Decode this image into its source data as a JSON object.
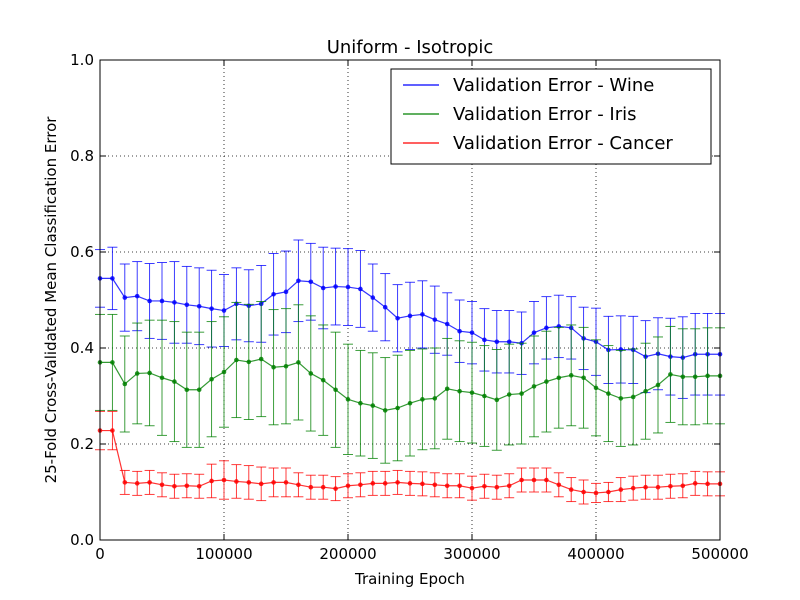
{
  "chart_data": {
    "type": "line",
    "title": "Uniform - Isotropic",
    "xlabel": "Training Epoch",
    "ylabel": "25-Fold Cross-Validated Mean Classification Error",
    "xlim": [
      0,
      500000
    ],
    "ylim": [
      0.0,
      1.0
    ],
    "x_ticks": [
      0,
      100000,
      200000,
      300000,
      400000,
      500000
    ],
    "x_tick_labels": [
      "0",
      "100000",
      "200000",
      "300000",
      "400000",
      "500000"
    ],
    "y_ticks": [
      0.0,
      0.2,
      0.4,
      0.6,
      0.8,
      1.0
    ],
    "y_tick_labels": [
      "0.0",
      "0.2",
      "0.4",
      "0.6",
      "0.8",
      "1.0"
    ],
    "grid": true,
    "legend_position": "top-right",
    "x": [
      0,
      10000,
      20000,
      30000,
      40000,
      50000,
      60000,
      70000,
      80000,
      90000,
      100000,
      110000,
      120000,
      130000,
      140000,
      150000,
      160000,
      170000,
      180000,
      190000,
      200000,
      210000,
      220000,
      230000,
      240000,
      250000,
      260000,
      270000,
      280000,
      290000,
      300000,
      310000,
      320000,
      330000,
      340000,
      350000,
      360000,
      370000,
      380000,
      390000,
      400000,
      410000,
      420000,
      430000,
      440000,
      450000,
      460000,
      470000,
      480000,
      490000,
      500000
    ],
    "series": [
      {
        "name": "Validation Error - Wine",
        "color": "#0000ff",
        "values": [
          0.545,
          0.545,
          0.505,
          0.508,
          0.498,
          0.498,
          0.495,
          0.49,
          0.487,
          0.482,
          0.478,
          0.492,
          0.488,
          0.492,
          0.512,
          0.517,
          0.54,
          0.538,
          0.525,
          0.528,
          0.527,
          0.523,
          0.505,
          0.485,
          0.462,
          0.467,
          0.47,
          0.459,
          0.45,
          0.435,
          0.432,
          0.417,
          0.413,
          0.413,
          0.41,
          0.432,
          0.442,
          0.445,
          0.442,
          0.42,
          0.413,
          0.396,
          0.397,
          0.396,
          0.382,
          0.388,
          0.382,
          0.38,
          0.387,
          0.387,
          0.387
        ],
        "errors": [
          0.06,
          0.065,
          0.07,
          0.072,
          0.078,
          0.08,
          0.085,
          0.08,
          0.08,
          0.08,
          0.075,
          0.075,
          0.075,
          0.08,
          0.085,
          0.085,
          0.085,
          0.08,
          0.085,
          0.08,
          0.08,
          0.08,
          0.07,
          0.07,
          0.07,
          0.07,
          0.07,
          0.07,
          0.065,
          0.065,
          0.065,
          0.065,
          0.065,
          0.065,
          0.065,
          0.065,
          0.065,
          0.065,
          0.065,
          0.065,
          0.07,
          0.07,
          0.07,
          0.07,
          0.075,
          0.075,
          0.08,
          0.085,
          0.085,
          0.085,
          0.085
        ]
      },
      {
        "name": "Validation Error - Iris",
        "color": "#008000",
        "values": [
          0.37,
          0.37,
          0.325,
          0.347,
          0.348,
          0.338,
          0.33,
          0.313,
          0.313,
          0.335,
          0.35,
          0.375,
          0.371,
          0.377,
          0.36,
          0.362,
          0.37,
          0.347,
          0.333,
          0.313,
          0.293,
          0.285,
          0.28,
          0.27,
          0.275,
          0.285,
          0.293,
          0.295,
          0.315,
          0.31,
          0.307,
          0.3,
          0.292,
          0.303,
          0.305,
          0.32,
          0.33,
          0.338,
          0.343,
          0.338,
          0.317,
          0.305,
          0.295,
          0.298,
          0.31,
          0.323,
          0.345,
          0.34,
          0.34,
          0.342,
          0.342
        ],
        "errors": [
          0.1,
          0.1,
          0.1,
          0.105,
          0.11,
          0.12,
          0.125,
          0.12,
          0.12,
          0.12,
          0.115,
          0.12,
          0.12,
          0.12,
          0.12,
          0.12,
          0.12,
          0.12,
          0.115,
          0.12,
          0.115,
          0.11,
          0.11,
          0.11,
          0.11,
          0.11,
          0.105,
          0.105,
          0.105,
          0.105,
          0.105,
          0.105,
          0.105,
          0.105,
          0.105,
          0.105,
          0.105,
          0.105,
          0.105,
          0.105,
          0.1,
          0.1,
          0.1,
          0.1,
          0.1,
          0.1,
          0.1,
          0.1,
          0.1,
          0.1,
          0.1
        ]
      },
      {
        "name": "Validation Error - Cancer",
        "color": "#ff0000",
        "values": [
          0.228,
          0.228,
          0.12,
          0.118,
          0.12,
          0.115,
          0.112,
          0.113,
          0.112,
          0.123,
          0.125,
          0.122,
          0.12,
          0.117,
          0.12,
          0.12,
          0.115,
          0.11,
          0.11,
          0.107,
          0.113,
          0.115,
          0.118,
          0.118,
          0.12,
          0.118,
          0.117,
          0.115,
          0.113,
          0.113,
          0.108,
          0.112,
          0.11,
          0.113,
          0.125,
          0.125,
          0.125,
          0.115,
          0.105,
          0.1,
          0.098,
          0.1,
          0.105,
          0.108,
          0.11,
          0.11,
          0.112,
          0.113,
          0.118,
          0.117,
          0.117
        ],
        "errors": [
          0.04,
          0.04,
          0.025,
          0.025,
          0.025,
          0.025,
          0.025,
          0.025,
          0.025,
          0.035,
          0.04,
          0.035,
          0.035,
          0.035,
          0.03,
          0.03,
          0.025,
          0.025,
          0.025,
          0.025,
          0.025,
          0.025,
          0.025,
          0.025,
          0.025,
          0.025,
          0.025,
          0.025,
          0.025,
          0.025,
          0.025,
          0.025,
          0.025,
          0.025,
          0.025,
          0.025,
          0.025,
          0.025,
          0.025,
          0.025,
          0.02,
          0.02,
          0.025,
          0.025,
          0.025,
          0.025,
          0.025,
          0.025,
          0.025,
          0.025,
          0.025
        ]
      }
    ]
  }
}
